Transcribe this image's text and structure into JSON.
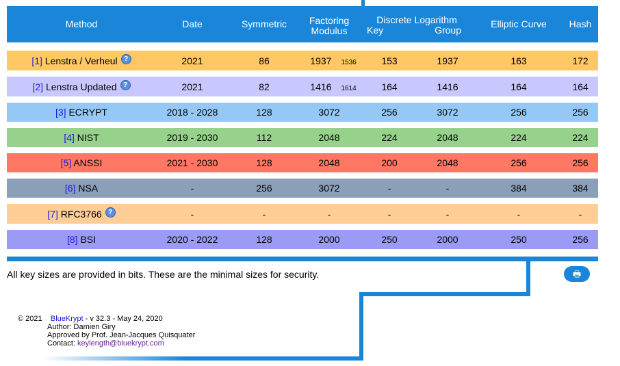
{
  "headers": {
    "method": "Method",
    "date": "Date",
    "symmetric": "Symmetric",
    "factoring": "Factoring Modulus",
    "discrete_log": "Discrete Logarithm",
    "dl_key": "Key",
    "dl_group": "Group",
    "elliptic": "Elliptic Curve",
    "hash": "Hash"
  },
  "rows": [
    {
      "ref": "[1]",
      "name": "Lenstra / Verheul",
      "help": "?",
      "date": "2021",
      "symmetric": "86",
      "factoring": "1937",
      "factoring_sub": "1536",
      "dl_key": "153",
      "dl_group": "1937",
      "elliptic": "163",
      "hash": "172",
      "color": "#ffc864"
    },
    {
      "ref": "[2]",
      "name": "Lenstra Updated",
      "help": "?",
      "date": "2021",
      "symmetric": "82",
      "factoring": "1416",
      "factoring_sub": "1614",
      "dl_key": "164",
      "dl_group": "1416",
      "elliptic": "164",
      "hash": "164",
      "color": "#c8c8ff"
    },
    {
      "ref": "[3]",
      "name": "ECRYPT",
      "date": "2018 - 2028",
      "symmetric": "128",
      "factoring": "3072",
      "dl_key": "256",
      "dl_group": "3072",
      "elliptic": "256",
      "hash": "256",
      "color": "#96c8f5"
    },
    {
      "ref": "[4]",
      "name": "NIST",
      "date": "2019 - 2030",
      "symmetric": "112",
      "factoring": "2048",
      "dl_key": "224",
      "dl_group": "2048",
      "elliptic": "224",
      "hash": "224",
      "color": "#96d28c"
    },
    {
      "ref": "[5]",
      "name": "ANSSI",
      "date": "2021 - 2030",
      "symmetric": "128",
      "factoring": "2048",
      "dl_key": "200",
      "dl_group": "2048",
      "elliptic": "256",
      "hash": "256",
      "color": "#ff7864"
    },
    {
      "ref": "[6]",
      "name": "NSA",
      "date": "-",
      "symmetric": "256",
      "factoring": "3072",
      "dl_key": "-",
      "dl_group": "-",
      "elliptic": "384",
      "hash": "384",
      "color": "#8c9fb8"
    },
    {
      "ref": "[7]",
      "name": "RFC3766",
      "help": "?",
      "date": "-",
      "symmetric": "-",
      "factoring": "-",
      "dl_key": "-",
      "dl_group": "-",
      "elliptic": "-",
      "hash": "-",
      "color": "#ffcd96"
    },
    {
      "ref": "[8]",
      "name": "BSI",
      "date": "2020 - 2022",
      "symmetric": "128",
      "factoring": "2000",
      "dl_key": "250",
      "dl_group": "2000",
      "elliptic": "250",
      "hash": "256",
      "color": "#9b9bf5"
    }
  ],
  "note": "All key sizes are provided in bits. These are the minimal sizes for security.",
  "print_icon": "🖶",
  "footer": {
    "copyright": "© 2021",
    "site": "BlueKrypt",
    "version": " - v 32.3 - May 24, 2020",
    "author": "Author: Damien Giry",
    "approved": "Approved by Prof. Jean-Jacques Quisquater",
    "contact_label": "Contact: ",
    "email": "keylength@bluekrypt.com"
  },
  "accent_color": "#1a86d9"
}
